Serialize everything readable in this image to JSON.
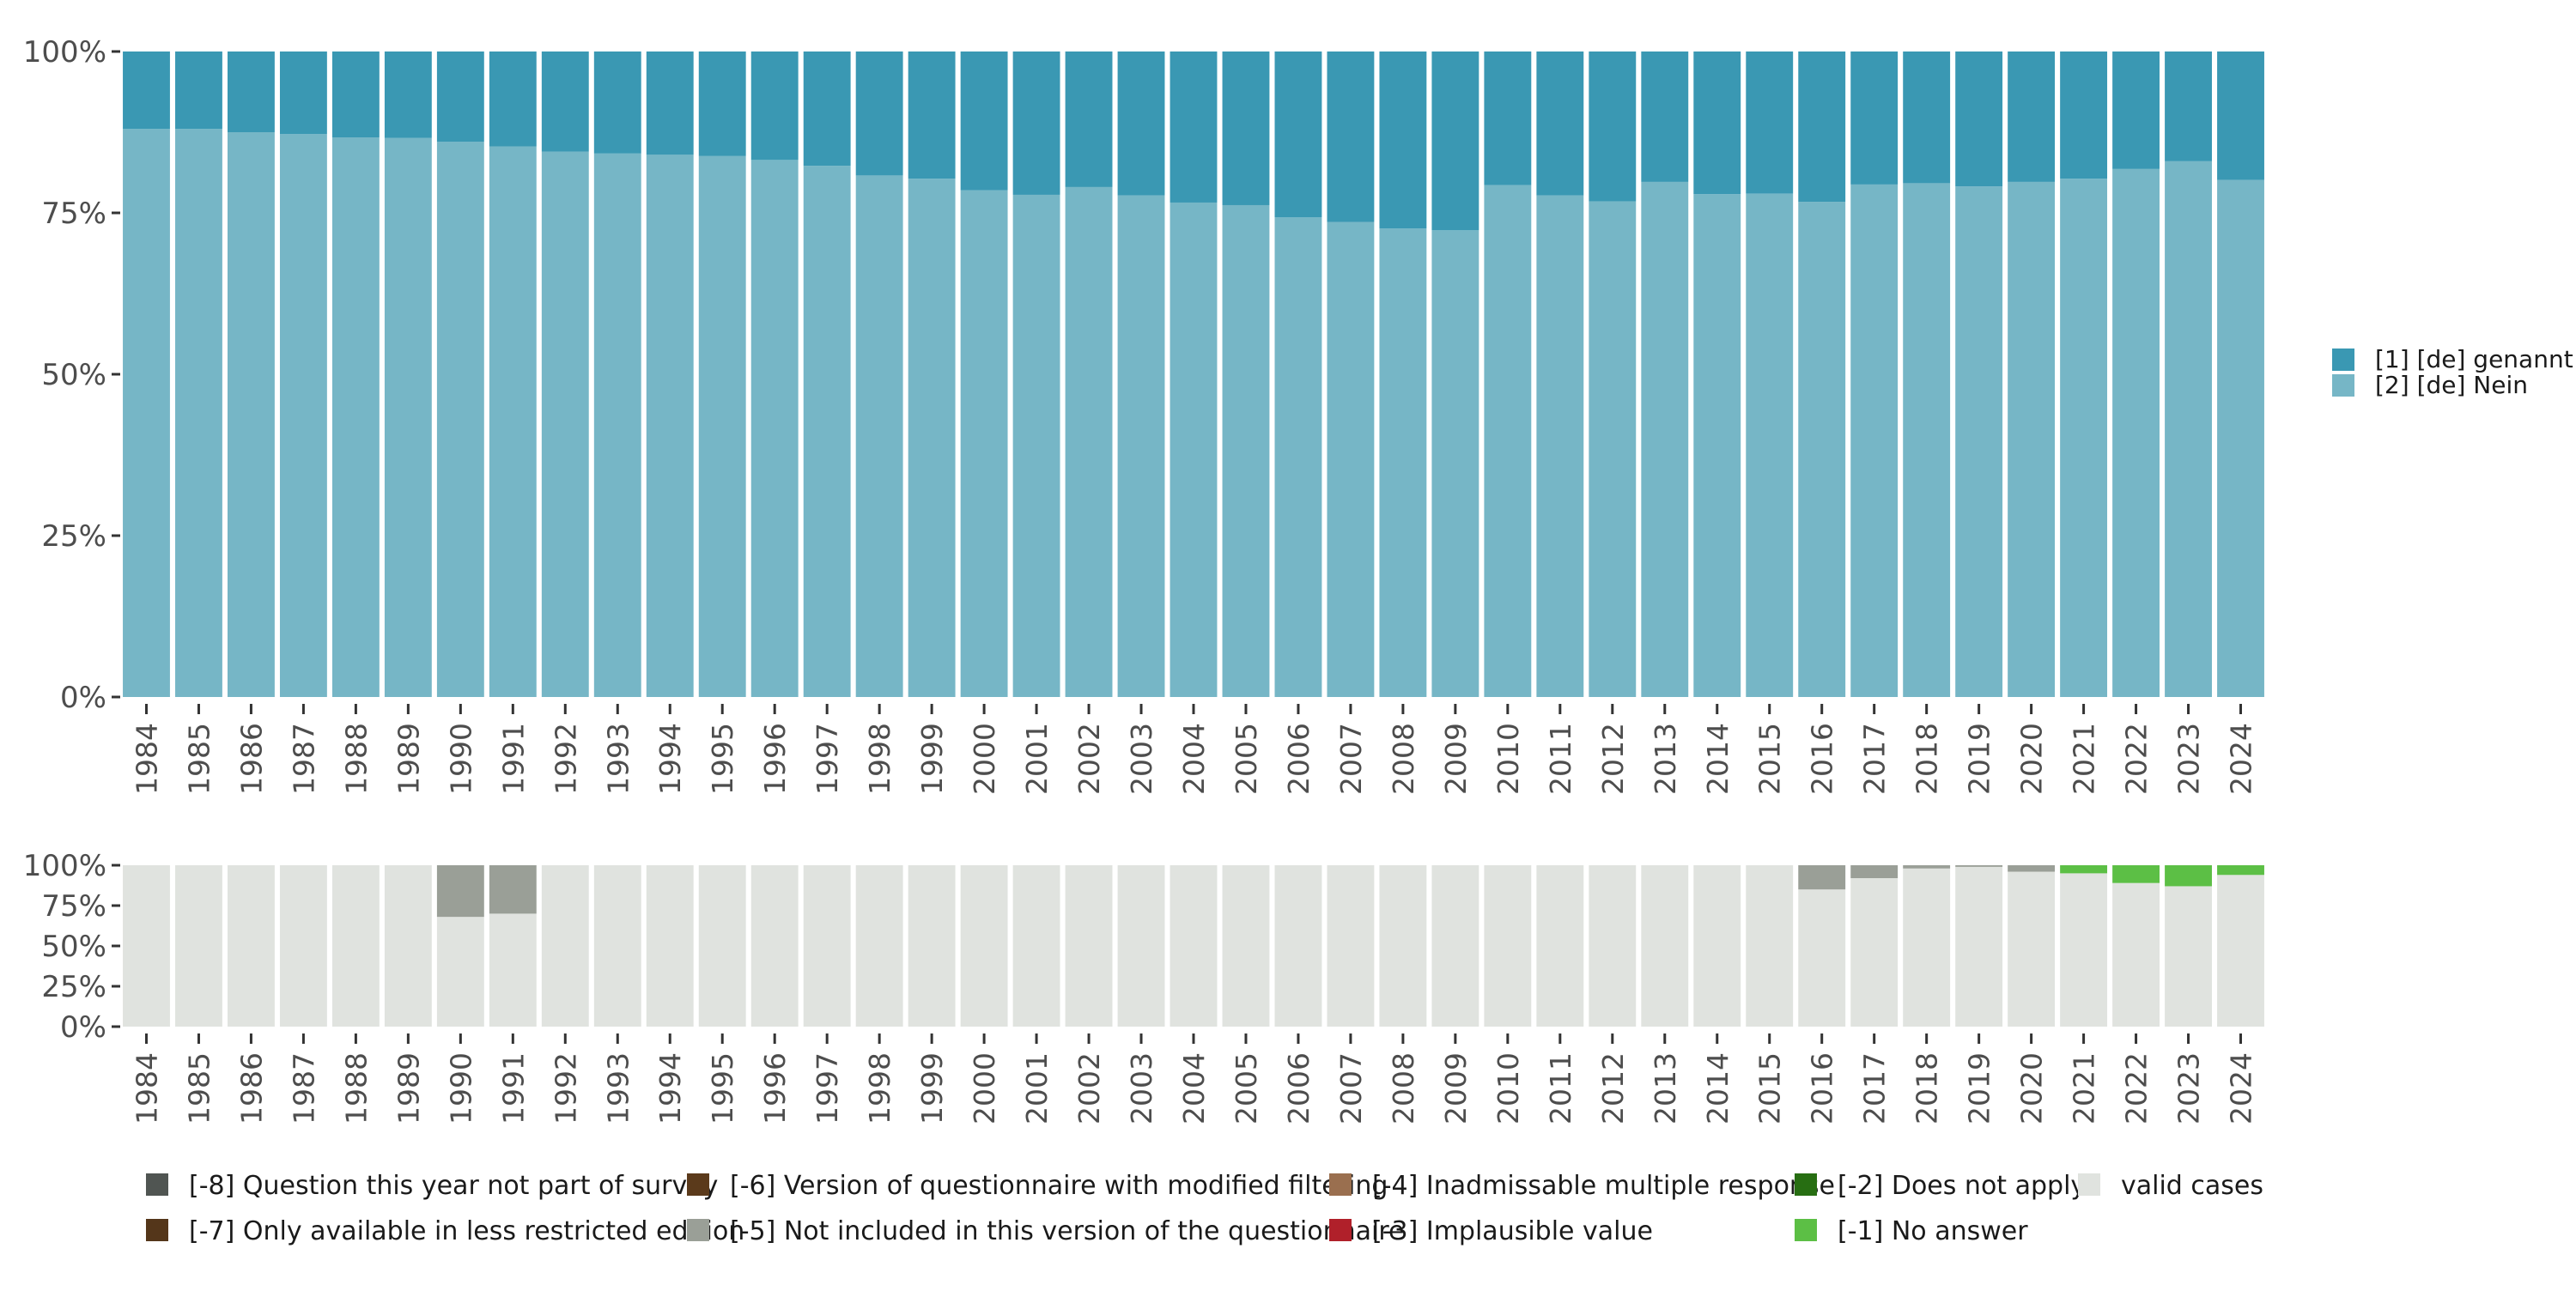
{
  "chart_data": [
    {
      "type": "bar",
      "stacked": true,
      "percent_scale": true,
      "categories": [
        "1984",
        "1985",
        "1986",
        "1987",
        "1988",
        "1989",
        "1990",
        "1991",
        "1992",
        "1993",
        "1994",
        "1995",
        "1996",
        "1997",
        "1998",
        "1999",
        "2000",
        "2001",
        "2002",
        "2003",
        "2004",
        "2005",
        "2006",
        "2007",
        "2008",
        "2009",
        "2010",
        "2011",
        "2012",
        "2013",
        "2014",
        "2015",
        "2016",
        "2017",
        "2018",
        "2019",
        "2020",
        "2021",
        "2022",
        "2023",
        "2024"
      ],
      "yticks": [
        "0%",
        "25%",
        "50%",
        "75%",
        "100%"
      ],
      "ylim": [
        0,
        100
      ],
      "legend_position": "right",
      "series": [
        {
          "name": "[2] [de] Nein",
          "color": "#76b6c6",
          "values": [
            88,
            88,
            87.5,
            87.2,
            86.7,
            86.6,
            86,
            85.3,
            84.5,
            84.2,
            84,
            83.8,
            83.2,
            82.3,
            80.8,
            80.3,
            78.5,
            77.8,
            79,
            77.7,
            76.6,
            76.2,
            74.3,
            73.6,
            72.6,
            72.3,
            79.3,
            77.7,
            76.8,
            79.8,
            77.9,
            78,
            76.7,
            79.4,
            79.6,
            79.1,
            79.8,
            80.3,
            81.8,
            83,
            80.1
          ]
        },
        {
          "name": "[1] [de] genannt",
          "color": "#3a98b3",
          "values": [
            12,
            12,
            12.5,
            12.8,
            13.3,
            13.4,
            14,
            14.7,
            15.5,
            15.8,
            16,
            16.2,
            16.8,
            17.7,
            19.2,
            19.7,
            21.5,
            22.2,
            21,
            22.3,
            23.4,
            23.8,
            25.7,
            26.4,
            27.4,
            27.7,
            20.7,
            22.3,
            23.2,
            20.2,
            22.1,
            22,
            23.3,
            20.6,
            20.4,
            20.9,
            20.2,
            19.7,
            18.2,
            17,
            19.9
          ]
        }
      ]
    },
    {
      "type": "bar",
      "stacked": true,
      "percent_scale": true,
      "categories": [
        "1984",
        "1985",
        "1986",
        "1987",
        "1988",
        "1989",
        "1990",
        "1991",
        "1992",
        "1993",
        "1994",
        "1995",
        "1996",
        "1997",
        "1998",
        "1999",
        "2000",
        "2001",
        "2002",
        "2003",
        "2004",
        "2005",
        "2006",
        "2007",
        "2008",
        "2009",
        "2010",
        "2011",
        "2012",
        "2013",
        "2014",
        "2015",
        "2016",
        "2017",
        "2018",
        "2019",
        "2020",
        "2021",
        "2022",
        "2023",
        "2024"
      ],
      "yticks": [
        "0%",
        "25%",
        "50%",
        "75%",
        "100%"
      ],
      "ylim": [
        0,
        100
      ],
      "legend_position": "bottom",
      "series": [
        {
          "name": "valid cases",
          "color": "#e0e3df",
          "values": [
            100,
            100,
            100,
            100,
            100,
            100,
            68,
            70,
            100,
            100,
            100,
            100,
            100,
            100,
            100,
            100,
            100,
            100,
            100,
            100,
            100,
            100,
            100,
            100,
            100,
            100,
            100,
            100,
            100,
            100,
            100,
            100,
            85,
            92,
            98,
            99,
            96,
            95,
            89,
            87,
            94
          ]
        },
        {
          "name": "[-5] Not included in this version of the questionnaire",
          "color": "#9a9f97",
          "values": [
            0,
            0,
            0,
            0,
            0,
            0,
            32,
            30,
            0,
            0,
            0,
            0,
            0,
            0,
            0,
            0,
            0,
            0,
            0,
            0,
            0,
            0,
            0,
            0,
            0,
            0,
            0,
            0,
            0,
            0,
            0,
            0,
            15,
            8,
            2,
            1,
            4,
            0,
            0,
            0,
            0
          ]
        },
        {
          "name": "[-1] No answer",
          "color": "#5cbf45",
          "values": [
            0,
            0,
            0,
            0,
            0,
            0,
            0,
            0,
            0,
            0,
            0,
            0,
            0,
            0,
            0,
            0,
            0,
            0,
            0,
            0,
            0,
            0,
            0,
            0,
            0,
            0,
            0,
            0,
            0,
            0,
            0,
            0,
            0,
            0,
            0,
            0,
            0,
            5,
            11,
            13,
            6
          ]
        }
      ],
      "legend": [
        {
          "label": "[-8] Question this year not part of survey",
          "color": "#505552"
        },
        {
          "label": "[-7] Only available in less restricted edition",
          "color": "#54361a"
        },
        {
          "label": "[-6] Version of questionnaire with modified filtering",
          "color": "#5b3a1b"
        },
        {
          "label": "[-5] Not included in this version of the questionnaire",
          "color": "#9a9f97"
        },
        {
          "label": "[-4] Inadmissable multiple response",
          "color": "#9a6f4f"
        },
        {
          "label": "[-3] Implausible value",
          "color": "#b0202a"
        },
        {
          "label": "[-2] Does not apply",
          "color": "#276e12"
        },
        {
          "label": "[-1] No answer",
          "color": "#5cbf45"
        },
        {
          "label": "valid cases",
          "color": "#e0e3df"
        }
      ]
    }
  ]
}
